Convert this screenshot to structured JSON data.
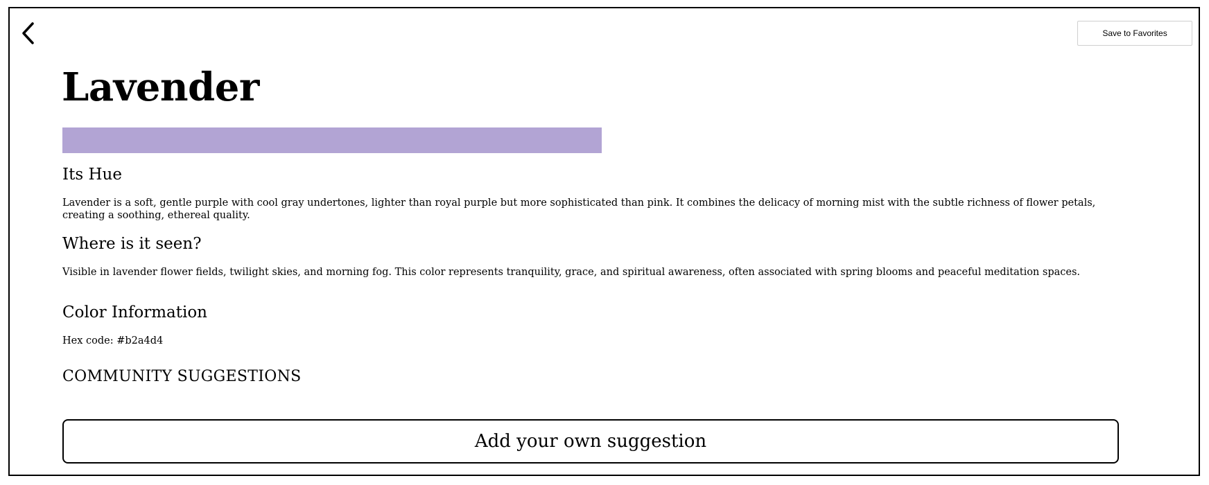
{
  "header": {
    "back_icon": "chevron-left-icon",
    "save_label": "Save to Favorites"
  },
  "color": {
    "name": "Lavender",
    "swatch_color": "#b2a4d4"
  },
  "sections": {
    "hue": {
      "heading": "Its Hue",
      "text": "Lavender is a soft, gentle purple with cool gray undertones, lighter than royal purple but more sophisticated than pink. It combines the delicacy of morning mist with the subtle richness of flower petals, creating a soothing, ethereal quality."
    },
    "seen": {
      "heading": "Where is it seen?",
      "text": "Visible in lavender flower fields, twilight skies, and morning fog. This color represents tranquility, grace, and spiritual awareness, often associated with spring blooms and peaceful meditation spaces."
    },
    "info": {
      "heading": "Color Information",
      "hex_text": "Hex code: #b2a4d4"
    }
  },
  "community": {
    "heading": "COMMUNITY SUGGESTIONS",
    "add_label": "Add your own suggestion"
  }
}
